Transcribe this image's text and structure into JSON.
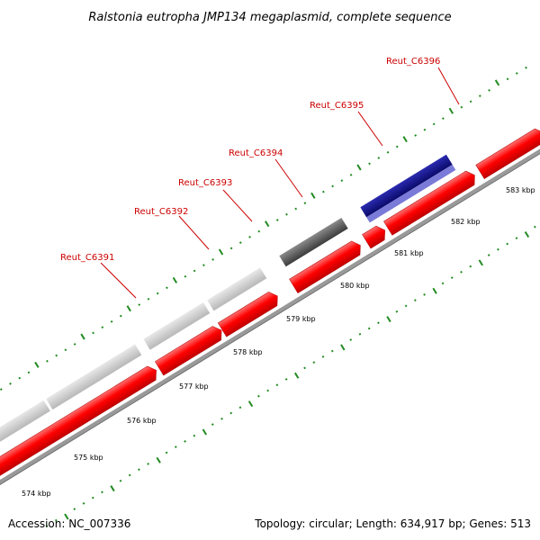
{
  "title": "Ralstonia eutropha JMP134 megaplasmid, complete sequence",
  "footer": {
    "accession": "Accession: NC_007336",
    "summary": "Topology: circular; Length: 634,917 bp; Genes: 513"
  },
  "colors": {
    "forward_cds": "#ff0000",
    "reverse_cds_light": "#c8c8c8",
    "reverse_cds_dark": "#5a5a5a",
    "reverse_cds_highlight": "#1a1a8c",
    "backbone": "#999999",
    "tick": "#228b22",
    "label": "#cc0000"
  },
  "gene_labels": [
    "Reut_C6391",
    "Reut_C6392",
    "Reut_C6393",
    "Reut_C6394",
    "Reut_C6395",
    "Reut_C6396"
  ],
  "scale_labels": [
    "574 kbp",
    "575 kbp",
    "576 kbp",
    "577 kbp",
    "578 kbp",
    "579 kbp",
    "580 kbp",
    "581 kbp",
    "582 kbp",
    "583 kbp"
  ]
}
